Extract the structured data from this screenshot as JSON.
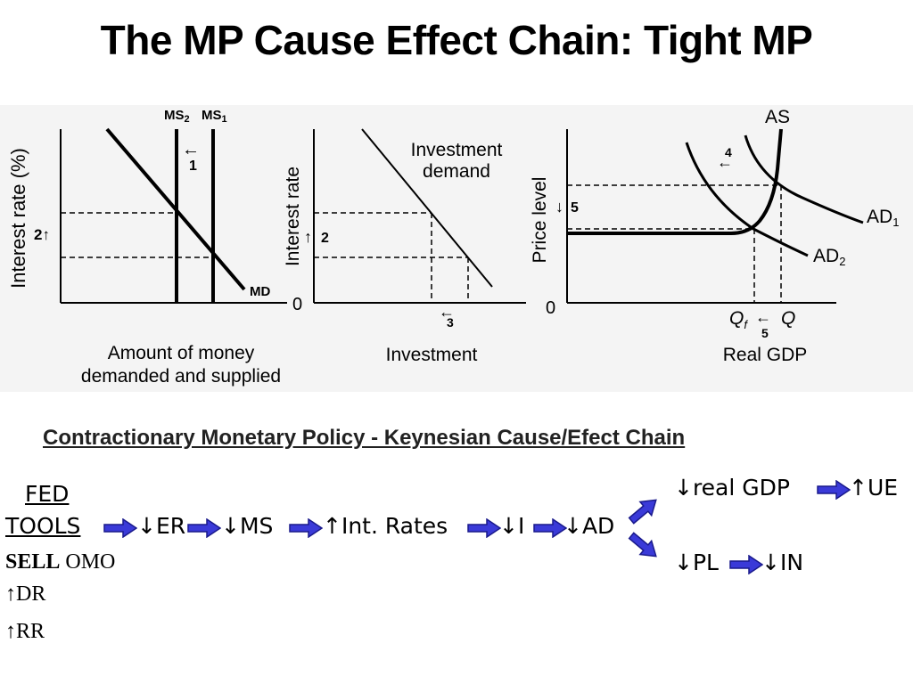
{
  "title": "The MP Cause Effect Chain: Tight MP",
  "graph1": {
    "ylabel": "Interest rate (%)",
    "xlabel_line1": "Amount of money",
    "xlabel_line2": "demanded and supplied",
    "ms2": "MS",
    "ms2_sub": "2",
    "ms1": "MS",
    "ms1_sub": "1",
    "md": "MD",
    "step_arrow": "←",
    "step_num": "1",
    "side_label": "2↑"
  },
  "graph2": {
    "ylabel": "Interest rate",
    "xlabel": "Investment",
    "curve_line1": "Investment",
    "curve_line2": "demand",
    "origin": "0",
    "side_arrow": "↑",
    "side_num": "2",
    "step_arrow": "←",
    "step_num": "3"
  },
  "graph3": {
    "ylabel": "Price level",
    "xlabel": "Real GDP",
    "as_label": "AS",
    "ad1": "AD",
    "ad1_sub": "1",
    "ad2": "AD",
    "ad2_sub": "2",
    "origin": "0",
    "step4_arrow": "←",
    "step4_num": "4",
    "step5_arrow": "↓",
    "step5_num": "5",
    "qf": "Q",
    "qf_sub": "f",
    "q": "Q",
    "q_arrow": "←",
    "q_num": "5"
  },
  "chain": {
    "heading": "Contractionary Monetary Policy - Keynesian Cause/Efect Chain",
    "fed": "FED",
    "tools": "TOOLS",
    "er": "↓ER",
    "ms": "↓MS",
    "int_rates": "↑Int. Rates",
    "i": "↓I",
    "ad": "↓AD",
    "real_gdp": "↓real GDP",
    "ue": "↑UE",
    "pl": "↓PL",
    "in": "↓IN",
    "sell_bold": "SELL",
    "sell_rest": " OMO",
    "dr": "↑DR",
    "rr": "↑RR"
  },
  "colors": {
    "arrow_fill": "#3a3ad8",
    "arrow_dark": "#1a1a8c",
    "panel_bg": "#f2f2f2"
  }
}
